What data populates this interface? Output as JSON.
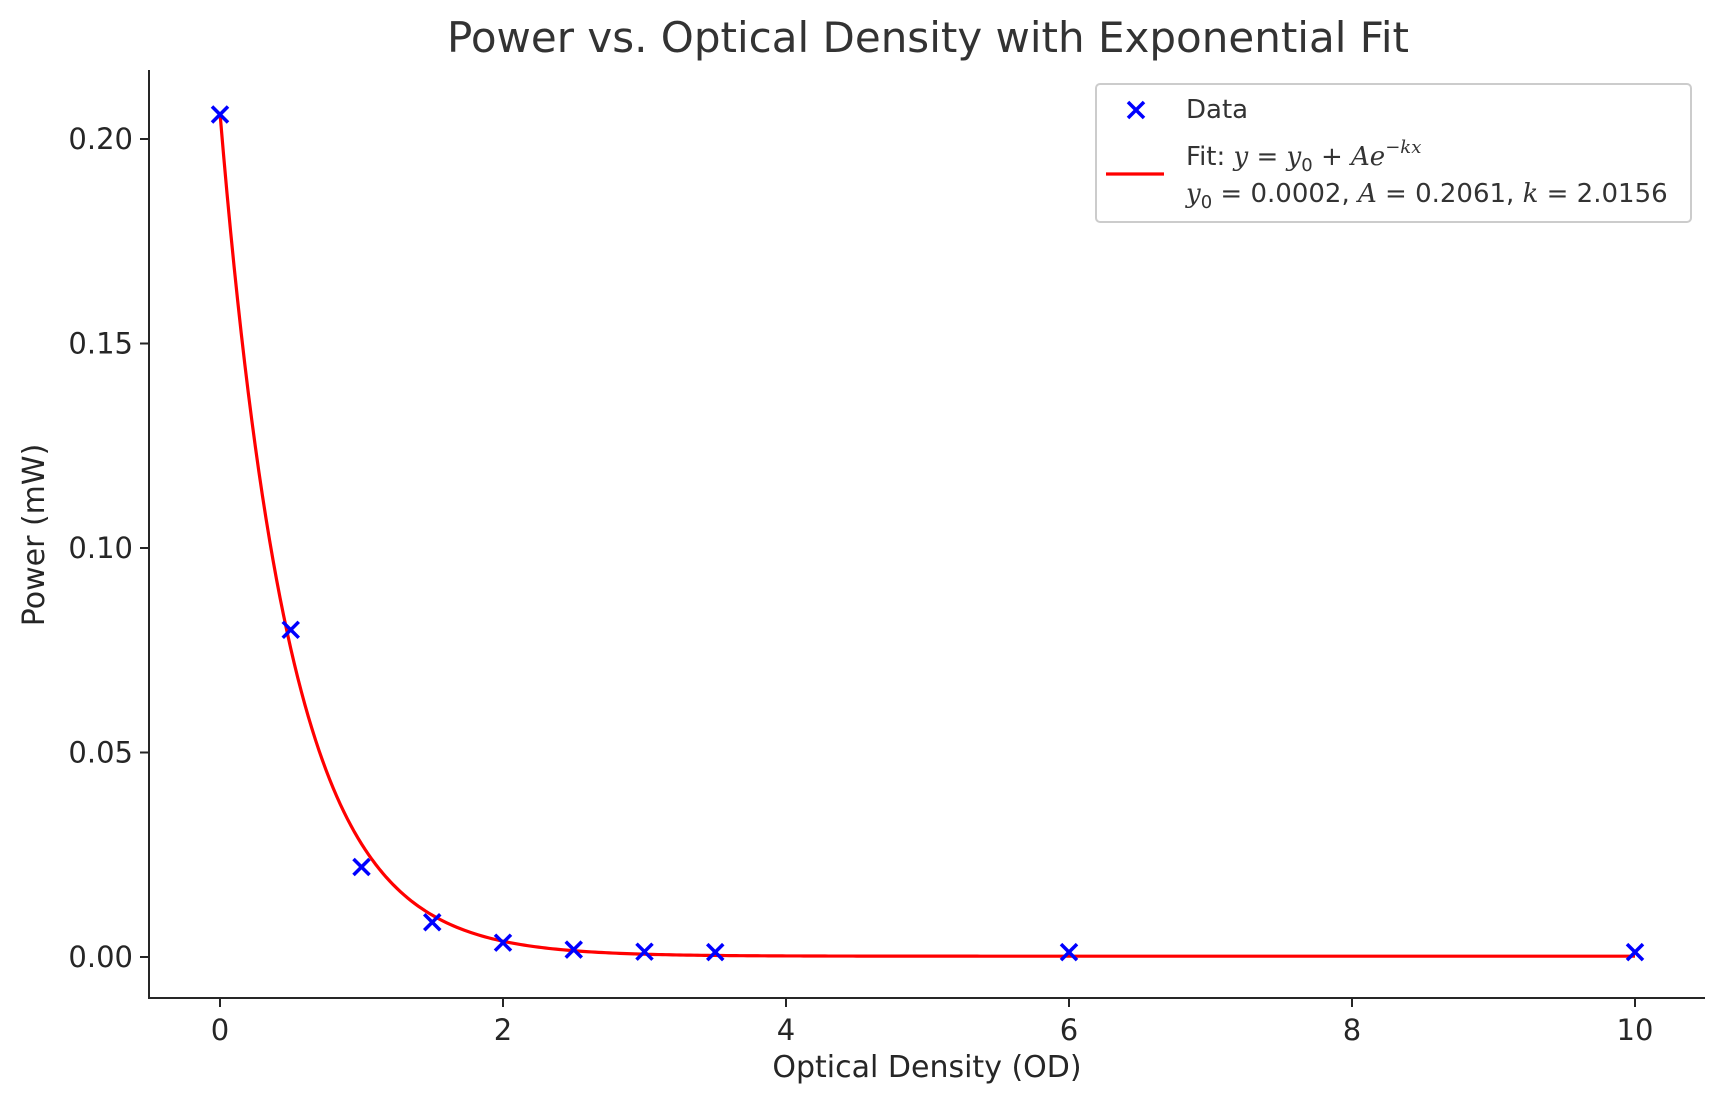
{
  "chart_data": {
    "type": "scatter",
    "title": "Power vs. Optical Density with Exponential Fit",
    "xlabel": "Optical Density (OD)",
    "ylabel": "Power (mW)",
    "xlim": [
      -0.5,
      10.5
    ],
    "ylim": [
      -0.01,
      0.217
    ],
    "xticks": [
      0,
      2,
      4,
      6,
      8,
      10
    ],
    "xtick_labels": [
      "0",
      "2",
      "4",
      "6",
      "8",
      "10"
    ],
    "yticks": [
      0.0,
      0.05,
      0.1,
      0.15,
      0.2
    ],
    "ytick_labels": [
      "0.00",
      "0.05",
      "0.10",
      "0.15",
      "0.20"
    ],
    "grid": false,
    "legend_position": "top-right",
    "series": [
      {
        "name": "Data",
        "kind": "scatter",
        "marker": "x",
        "color": "#0000ff",
        "x": [
          0,
          0.5,
          1,
          1.5,
          2,
          2.5,
          3,
          3.5,
          6,
          10
        ],
        "y": [
          0.206,
          0.08,
          0.022,
          0.0085,
          0.0035,
          0.0018,
          0.0013,
          0.0012,
          0.0012,
          0.0012
        ]
      },
      {
        "name": "Fit",
        "kind": "line",
        "color": "#ff0000",
        "model": "y = y0 + A*exp(-k*x)",
        "params": {
          "y0": 0.0002,
          "A": 0.2061,
          "k": 2.0156
        },
        "x_range": [
          0,
          10
        ]
      }
    ],
    "legend": {
      "data_label": "Data",
      "fit_prefix": "Fit: ",
      "fit_eq_lhs": "y",
      "fit_eq_eq": " = ",
      "fit_eq_y": "y",
      "fit_eq_sub0": "0",
      "fit_eq_plus": " + ",
      "fit_eq_A": "Ae",
      "fit_eq_exp": "−kx",
      "params_y": "y",
      "params_sub0": "0",
      "params_y0_val": " = 0.0002, ",
      "params_A": "A",
      "params_A_val": " = 0.2061, ",
      "params_k": "k",
      "params_k_val": " = 2.0156"
    }
  }
}
